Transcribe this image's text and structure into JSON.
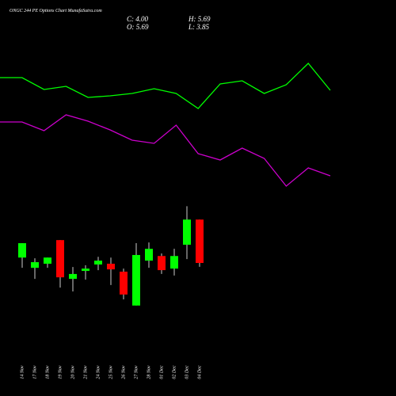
{
  "chart_data": [
    {
      "type": "line",
      "ylim": [
        0,
        100
      ],
      "series": [
        {
          "color": "#00ff00",
          "values": [
            81,
            81,
            73.5,
            75.5,
            68.5,
            69.5,
            71,
            74,
            71,
            61.5,
            77,
            79,
            71,
            76.5,
            90,
            73
          ]
        },
        {
          "color": "#cc00cc",
          "values": [
            53,
            53,
            47.5,
            57.5,
            53.5,
            48,
            41.5,
            39.5,
            51,
            33,
            29,
            36.5,
            30,
            12.5,
            24,
            19
          ]
        }
      ]
    },
    {
      "type": "candlestick",
      "title": "ONGC 244  PE Options  Chart MunafaSutra.com",
      "summary": [
        "C: 4.00",
        "H: 5.69",
        "O: 5.69",
        "L: 3.85"
      ],
      "up_color": "#00ff00",
      "down_color": "#ff0000",
      "ylim": [
        1.5,
        6.5
      ],
      "categories": [
        "14 Nov",
        "17 Nov",
        "18 Nov",
        "19 Nov",
        "20 Nov",
        "21 Nov",
        "24 Nov",
        "25 Nov",
        "26 Nov",
        "27 Nov",
        "28 Nov",
        "01 Dec",
        "02 Dec",
        "03 Dec",
        "04 Dec"
      ],
      "open": [
        4.21,
        3.81,
        3.97,
        4.89,
        3.38,
        3.69,
        3.94,
        3.97,
        3.66,
        2.34,
        4.09,
        4.27,
        3.78,
        4.71,
        5.69
      ],
      "high": [
        4.77,
        4.18,
        4.21,
        4.89,
        3.84,
        3.91,
        4.24,
        4.21,
        3.78,
        4.77,
        4.8,
        4.37,
        4.55,
        6.21,
        5.69
      ],
      "low": [
        3.81,
        3.38,
        3.81,
        3.04,
        2.89,
        3.35,
        3.72,
        3.14,
        2.58,
        2.34,
        3.81,
        3.57,
        3.51,
        4.15,
        3.85
      ],
      "close": [
        4.77,
        4.03,
        4.21,
        3.44,
        3.57,
        3.78,
        4.09,
        3.75,
        2.77,
        4.31,
        4.55,
        3.72,
        4.27,
        5.69,
        4.0
      ]
    }
  ]
}
